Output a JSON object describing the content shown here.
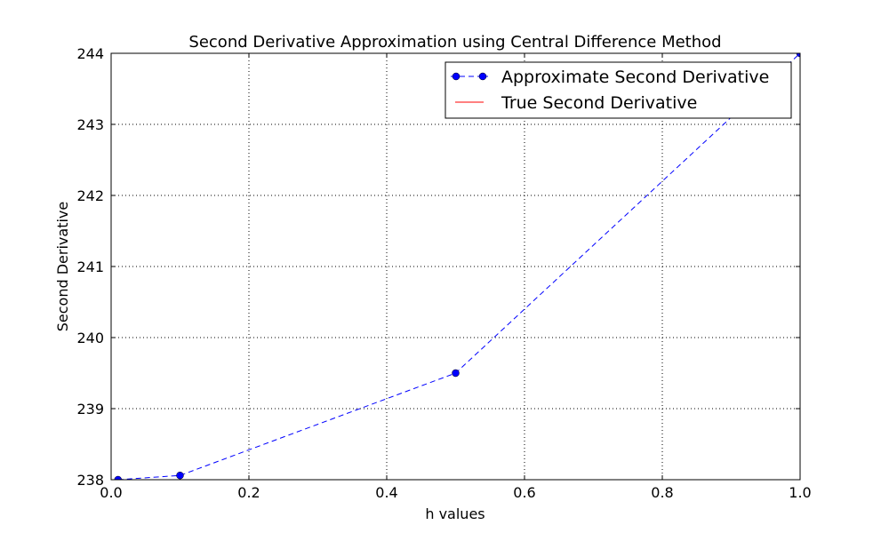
{
  "chart_data": {
    "type": "line",
    "title": "Second Derivative Approximation using Central Difference Method",
    "xlabel": "h values",
    "ylabel": "Second Derivative",
    "xlim": [
      0.0,
      1.0
    ],
    "ylim": [
      238,
      244
    ],
    "xticks": [
      0.0,
      0.2,
      0.4,
      0.6,
      0.8,
      1.0
    ],
    "xtick_labels": [
      "0.0",
      "0.2",
      "0.4",
      "0.6",
      "0.8",
      "1.0"
    ],
    "yticks": [
      238,
      239,
      240,
      241,
      242,
      243,
      244
    ],
    "ytick_labels": [
      "238",
      "239",
      "240",
      "241",
      "242",
      "243",
      "244"
    ],
    "grid": true,
    "legend_position": "top-right",
    "series": [
      {
        "name": "Approximate Second Derivative",
        "color": "#0000ff",
        "style": "dashed-with-markers",
        "x": [
          0.01,
          0.1,
          0.5,
          1.0
        ],
        "y": [
          238.0,
          238.06,
          239.5,
          244.0
        ]
      },
      {
        "name": "True Second Derivative",
        "color": "#ff0000",
        "style": "solid",
        "x": [],
        "y": []
      }
    ]
  }
}
